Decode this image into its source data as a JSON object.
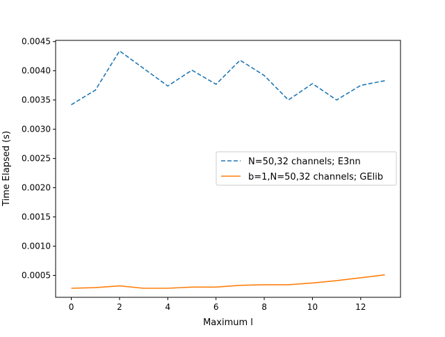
{
  "chart_data": {
    "type": "line",
    "xlabel": "Maximum l",
    "ylabel": "Time Elapsed (s)",
    "xlim": [
      -0.65,
      13.65
    ],
    "ylim": [
      0.000125,
      0.00452
    ],
    "x_ticks": [
      0,
      2,
      4,
      6,
      8,
      10,
      12
    ],
    "x_tick_labels": [
      "0",
      "2",
      "4",
      "6",
      "8",
      "10",
      "12"
    ],
    "y_ticks": [
      0.0005,
      0.001,
      0.0015,
      0.002,
      0.0025,
      0.003,
      0.0035,
      0.004,
      0.0045
    ],
    "y_tick_labels": [
      "0.0005",
      "0.0010",
      "0.0015",
      "0.0020",
      "0.0025",
      "0.0030",
      "0.0035",
      "0.0040",
      "0.0045"
    ],
    "grid": false,
    "legend_position": "center-right",
    "x": [
      0,
      1,
      2,
      3,
      4,
      5,
      6,
      7,
      8,
      9,
      10,
      11,
      12,
      13
    ],
    "series": [
      {
        "name": "N=50,32 channels; E3nn",
        "color": "#1f77b4",
        "style": "dashed",
        "values": [
          0.00342,
          0.00367,
          0.00434,
          0.00404,
          0.00374,
          0.00401,
          0.00377,
          0.00418,
          0.00392,
          0.0035,
          0.00378,
          0.0035,
          0.00375,
          0.00383
        ]
      },
      {
        "name": "b=1,N=50,32 channels; GElib",
        "color": "#ff7f0e",
        "style": "solid",
        "values": [
          0.00028,
          0.00029,
          0.00032,
          0.00028,
          0.00028,
          0.0003,
          0.0003,
          0.00033,
          0.00034,
          0.00034,
          0.00037,
          0.00041,
          0.00046,
          0.00051
        ]
      }
    ]
  }
}
